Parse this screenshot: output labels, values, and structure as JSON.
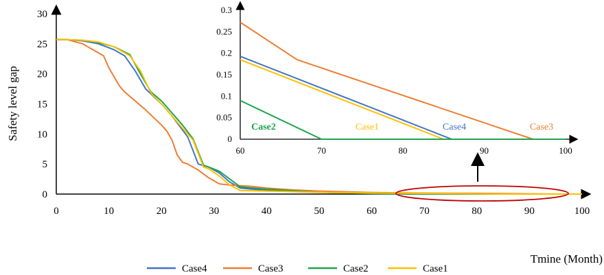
{
  "chart_data": [
    {
      "type": "line",
      "ylabel": "Safety level gap",
      "xlabel": "Tmine (Month)",
      "xlim": [
        0,
        100
      ],
      "ylim": [
        0,
        30
      ],
      "xticks": [
        0,
        10,
        20,
        30,
        40,
        50,
        60,
        70,
        80,
        90,
        100
      ],
      "yticks": [
        0,
        5,
        10,
        15,
        20,
        25,
        30
      ],
      "legend_position": "bottom",
      "series": [
        {
          "name": "Case4",
          "color": "#4472C4",
          "x": [
            0,
            2,
            5,
            8,
            11,
            13,
            15,
            17,
            20,
            22,
            25,
            27,
            29,
            31,
            33,
            35,
            40,
            45,
            50,
            60,
            70,
            80,
            85,
            86,
            100
          ],
          "y": [
            25.7,
            25.7,
            25.5,
            25.0,
            24.0,
            23.0,
            20.5,
            17.5,
            15.0,
            13.0,
            9.5,
            5.0,
            4.5,
            3.5,
            2.0,
            1.0,
            0.6,
            0.4,
            0.3,
            0.19,
            0.12,
            0.05,
            0.0,
            0.0,
            0.0
          ]
        },
        {
          "name": "Case3",
          "color": "#ED7D31",
          "x": [
            0,
            2,
            5,
            7,
            9,
            10,
            12,
            13,
            15,
            17,
            20,
            21,
            22,
            23,
            24,
            25,
            27,
            29,
            31,
            33,
            35,
            37,
            40,
            45,
            50,
            60,
            67,
            80,
            90,
            96,
            100
          ],
          "y": [
            25.7,
            25.7,
            25.0,
            24.0,
            23.0,
            21.0,
            18.0,
            17.0,
            15.5,
            14.0,
            11.5,
            10.5,
            9.0,
            6.5,
            5.3,
            5.0,
            4.0,
            2.7,
            1.7,
            1.5,
            1.4,
            1.3,
            1.0,
            0.7,
            0.5,
            0.27,
            0.18,
            0.13,
            0.05,
            0.0,
            0.0
          ]
        },
        {
          "name": "Case2",
          "color": "#1EA34B",
          "x": [
            0,
            2,
            5,
            8,
            11,
            14,
            16,
            18,
            20,
            22,
            24,
            26,
            28,
            29,
            31,
            33,
            35,
            40,
            50,
            60,
            70,
            100
          ],
          "y": [
            25.7,
            25.7,
            25.6,
            25.2,
            24.5,
            23.2,
            20.0,
            17.0,
            15.5,
            13.5,
            11.5,
            9.2,
            4.8,
            4.5,
            3.8,
            2.5,
            1.2,
            0.8,
            0.3,
            0.09,
            0.0,
            0.0
          ]
        },
        {
          "name": "Case1",
          "color": "#FFC000",
          "x": [
            0,
            2,
            5,
            8,
            11,
            14,
            16,
            18,
            20,
            22,
            24,
            26,
            28,
            29,
            31,
            33,
            35,
            40,
            50,
            60,
            70,
            80,
            85,
            100
          ],
          "y": [
            25.7,
            25.7,
            25.6,
            25.3,
            24.5,
            23.0,
            20.5,
            16.8,
            15.0,
            13.0,
            11.0,
            9.0,
            4.5,
            4.2,
            3.0,
            1.5,
            0.6,
            0.5,
            0.3,
            0.185,
            0.11,
            0.04,
            0.0,
            0.0
          ]
        }
      ]
    },
    {
      "type": "line",
      "title": "",
      "xlim": [
        60,
        100
      ],
      "ylim": [
        0,
        0.3
      ],
      "xticks": [
        60,
        70,
        80,
        90,
        100
      ],
      "yticks": [
        0,
        0.05,
        0.1,
        0.15,
        0.2,
        0.25,
        0.3
      ],
      "ytick_labels": [
        "0",
        "0.05",
        "0.1",
        "0.15",
        "0.2",
        "0.25",
        "0.3"
      ],
      "series": [
        {
          "name": "Case4",
          "color": "#4472C4",
          "label": "Case4",
          "x": [
            60,
            86,
            100
          ],
          "y": [
            0.193,
            0.0,
            0.0
          ]
        },
        {
          "name": "Case3",
          "color": "#ED7D31",
          "label": "Case3",
          "x": [
            60,
            67,
            96,
            100
          ],
          "y": [
            0.272,
            0.185,
            0.0,
            0.0
          ]
        },
        {
          "name": "Case2",
          "color": "#1EA34B",
          "label": "Case2",
          "x": [
            60,
            70,
            100
          ],
          "y": [
            0.09,
            0.0,
            0.0
          ]
        },
        {
          "name": "Case1",
          "color": "#FFC000",
          "label": "Case1",
          "x": [
            60,
            85,
            100
          ],
          "y": [
            0.185,
            0.0,
            0.0
          ]
        }
      ]
    }
  ],
  "highlight_ellipse_color": "#C00000",
  "legend_order": [
    "Case4",
    "Case3",
    "Case2",
    "Case1"
  ]
}
